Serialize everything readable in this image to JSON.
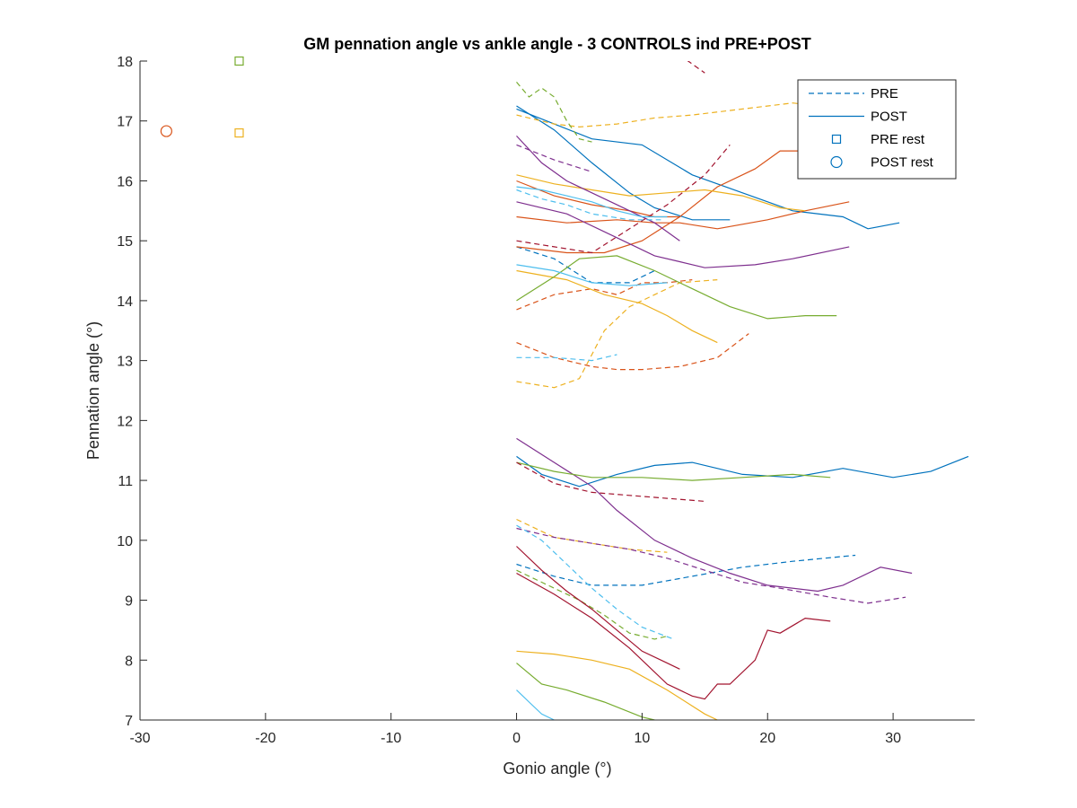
{
  "chart_data": {
    "type": "line",
    "title": "GM pennation angle vs ankle angle - 3 CONTROLS ind PRE+POST",
    "xlabel": "Gonio angle (°)",
    "ylabel": "Pennation angle (°)",
    "xlim": [
      -30,
      36.5
    ],
    "ylim": [
      7,
      18
    ],
    "xticks": [
      -30,
      -20,
      -10,
      0,
      10,
      20,
      30
    ],
    "yticks": [
      7,
      8,
      9,
      10,
      11,
      12,
      13,
      14,
      15,
      16,
      17,
      18
    ],
    "grid": false,
    "legend": {
      "position": "top-right",
      "entries": [
        {
          "label": "PRE",
          "style": "dashed",
          "marker": ""
        },
        {
          "label": "POST",
          "style": "solid",
          "marker": ""
        },
        {
          "label": "PRE rest",
          "style": "none",
          "marker": "square"
        },
        {
          "label": "POST rest",
          "style": "none",
          "marker": "circle"
        }
      ],
      "color": "#0072BD"
    },
    "markers": [
      {
        "x": -27.9,
        "y": 16.83,
        "shape": "circle",
        "color": "#D95319"
      },
      {
        "x": -22.1,
        "y": 18.0,
        "shape": "square",
        "color": "#77AC30"
      },
      {
        "x": -22.1,
        "y": 16.8,
        "shape": "square",
        "color": "#EDB120"
      }
    ],
    "series": [
      {
        "color": "#0072BD",
        "style": "solid",
        "x": [
          0,
          3,
          6,
          10,
          14,
          18,
          22,
          26,
          28,
          30.5
        ],
        "y": [
          17.2,
          16.95,
          16.7,
          16.6,
          16.1,
          15.8,
          15.5,
          15.4,
          15.2,
          15.3
        ]
      },
      {
        "color": "#0072BD",
        "style": "solid",
        "x": [
          0,
          2,
          5,
          8,
          11,
          14,
          18,
          22,
          26,
          30,
          33,
          36
        ],
        "y": [
          11.4,
          11.1,
          10.9,
          11.1,
          11.25,
          11.3,
          11.1,
          11.05,
          11.2,
          11.05,
          11.15,
          11.4
        ]
      },
      {
        "color": "#0072BD",
        "style": "solid",
        "x": [
          0,
          3,
          6,
          9,
          11,
          14,
          17
        ],
        "y": [
          17.25,
          16.85,
          16.3,
          15.8,
          15.55,
          15.35,
          15.35
        ]
      },
      {
        "color": "#0072BD",
        "style": "dashed",
        "x": [
          0,
          3,
          6,
          9,
          11
        ],
        "y": [
          14.9,
          14.7,
          14.3,
          14.3,
          14.5
        ]
      },
      {
        "color": "#0072BD",
        "style": "dashed",
        "x": [
          0,
          3,
          6,
          10,
          14,
          18,
          22,
          27
        ],
        "y": [
          9.6,
          9.4,
          9.25,
          9.25,
          9.4,
          9.55,
          9.65,
          9.75
        ]
      },
      {
        "color": "#D95319",
        "style": "solid",
        "x": [
          0,
          4,
          8,
          11,
          13,
          16,
          20,
          23,
          26.5
        ],
        "y": [
          15.4,
          15.3,
          15.35,
          15.3,
          15.3,
          15.2,
          15.35,
          15.5,
          15.65
        ]
      },
      {
        "color": "#D95319",
        "style": "solid",
        "x": [
          0,
          4,
          7,
          10,
          13,
          16,
          19,
          21,
          23,
          25
        ],
        "y": [
          14.9,
          14.8,
          14.8,
          15.0,
          15.4,
          15.9,
          16.2,
          16.5,
          16.5,
          16.6
        ]
      },
      {
        "color": "#D95319",
        "style": "solid",
        "x": [
          0,
          3,
          6,
          9,
          11,
          13
        ],
        "y": [
          16.0,
          15.75,
          15.6,
          15.5,
          15.4,
          15.4
        ]
      },
      {
        "color": "#D95319",
        "style": "dashed",
        "x": [
          0,
          3,
          6,
          8,
          10,
          12,
          14
        ],
        "y": [
          13.85,
          14.1,
          14.2,
          14.1,
          14.3,
          14.3,
          14.35
        ]
      },
      {
        "color": "#D95319",
        "style": "dashed",
        "x": [
          0,
          3,
          6,
          8,
          10,
          13,
          16,
          18.5
        ],
        "y": [
          13.3,
          13.05,
          12.9,
          12.85,
          12.85,
          12.9,
          13.05,
          13.45
        ]
      },
      {
        "color": "#EDB120",
        "style": "dashed",
        "x": [
          0,
          3,
          5,
          8,
          11,
          14,
          18,
          22,
          26
        ],
        "y": [
          17.1,
          16.95,
          16.9,
          16.95,
          17.05,
          17.1,
          17.2,
          17.3,
          17.2
        ]
      },
      {
        "color": "#EDB120",
        "style": "dashed",
        "x": [
          0,
          3,
          5,
          7,
          9,
          11,
          13,
          16
        ],
        "y": [
          12.65,
          12.55,
          12.7,
          13.5,
          13.9,
          14.1,
          14.3,
          14.35
        ]
      },
      {
        "color": "#EDB120",
        "style": "dashed",
        "x": [
          0,
          3,
          6,
          9,
          12
        ],
        "y": [
          10.35,
          10.05,
          9.95,
          9.85,
          9.8
        ]
      },
      {
        "color": "#EDB120",
        "style": "solid",
        "x": [
          0,
          4,
          7,
          10,
          12,
          14,
          16
        ],
        "y": [
          14.5,
          14.35,
          14.1,
          13.95,
          13.75,
          13.5,
          13.3
        ]
      },
      {
        "color": "#EDB120",
        "style": "solid",
        "x": [
          0,
          3,
          6,
          9,
          12,
          15,
          18,
          21,
          23
        ],
        "y": [
          16.1,
          15.95,
          15.85,
          15.75,
          15.8,
          15.85,
          15.75,
          15.55,
          15.5
        ]
      },
      {
        "color": "#EDB120",
        "style": "solid",
        "x": [
          0,
          3,
          6,
          9,
          12,
          15,
          16
        ],
        "y": [
          8.15,
          8.1,
          8.0,
          7.85,
          7.5,
          7.1,
          7.0
        ]
      },
      {
        "color": "#7E2F8E",
        "style": "solid",
        "x": [
          0,
          4,
          8,
          11,
          13,
          15,
          19,
          22,
          26.5
        ],
        "y": [
          15.65,
          15.45,
          15.05,
          14.75,
          14.65,
          14.55,
          14.6,
          14.7,
          14.9
        ]
      },
      {
        "color": "#7E2F8E",
        "style": "solid",
        "x": [
          0,
          2,
          4,
          8,
          11,
          13
        ],
        "y": [
          16.75,
          16.3,
          16.0,
          15.6,
          15.3,
          15.0
        ]
      },
      {
        "color": "#7E2F8E",
        "style": "solid",
        "x": [
          0,
          3,
          6,
          8,
          11,
          14,
          17,
          20,
          24,
          26,
          29,
          31.5
        ],
        "y": [
          11.7,
          11.3,
          10.9,
          10.5,
          10.0,
          9.7,
          9.45,
          9.25,
          9.15,
          9.25,
          9.55,
          9.45
        ]
      },
      {
        "color": "#7E2F8E",
        "style": "dashed",
        "x": [
          0,
          3,
          6,
          9,
          12,
          15,
          18,
          21,
          25,
          28,
          31
        ],
        "y": [
          10.2,
          10.05,
          9.95,
          9.85,
          9.7,
          9.5,
          9.3,
          9.2,
          9.05,
          8.95,
          9.05
        ]
      },
      {
        "color": "#7E2F8E",
        "style": "dashed",
        "x": [
          0,
          3,
          6
        ],
        "y": [
          16.6,
          16.35,
          16.15
        ]
      },
      {
        "color": "#77AC30",
        "style": "solid",
        "x": [
          0,
          3,
          5,
          8,
          11,
          14,
          17,
          20,
          23,
          25.5
        ],
        "y": [
          14.0,
          14.4,
          14.7,
          14.75,
          14.5,
          14.2,
          13.9,
          13.7,
          13.75,
          13.75
        ]
      },
      {
        "color": "#77AC30",
        "style": "solid",
        "x": [
          0,
          3,
          6,
          10,
          14,
          18,
          22,
          25
        ],
        "y": [
          11.3,
          11.15,
          11.05,
          11.05,
          11.0,
          11.05,
          11.1,
          11.05
        ]
      },
      {
        "color": "#77AC30",
        "style": "solid",
        "x": [
          0,
          2,
          4,
          7,
          10,
          11
        ],
        "y": [
          7.95,
          7.6,
          7.5,
          7.3,
          7.05,
          7.0
        ]
      },
      {
        "color": "#77AC30",
        "style": "dashed",
        "x": [
          0,
          1,
          2,
          3,
          4,
          5,
          6
        ],
        "y": [
          17.65,
          17.4,
          17.55,
          17.4,
          17.0,
          16.7,
          16.65
        ]
      },
      {
        "color": "#77AC30",
        "style": "dashed",
        "x": [
          0,
          2,
          5,
          7,
          9,
          11,
          12
        ],
        "y": [
          9.5,
          9.3,
          9.0,
          8.75,
          8.45,
          8.35,
          8.4
        ]
      },
      {
        "color": "#A2142F",
        "style": "solid",
        "x": [
          0,
          2,
          4,
          6,
          8,
          10,
          12,
          13
        ],
        "y": [
          9.9,
          9.5,
          9.15,
          8.85,
          8.5,
          8.15,
          7.95,
          7.85
        ]
      },
      {
        "color": "#A2142F",
        "style": "solid",
        "x": [
          0,
          3,
          6,
          9,
          12,
          14,
          15,
          16,
          17,
          19,
          20,
          21,
          23,
          25
        ],
        "y": [
          9.45,
          9.1,
          8.7,
          8.2,
          7.6,
          7.4,
          7.35,
          7.6,
          7.6,
          8.0,
          8.5,
          8.45,
          8.7,
          8.65
        ]
      },
      {
        "color": "#A2142F",
        "style": "dashed",
        "x": [
          0,
          3,
          6,
          9,
          12,
          15,
          17
        ],
        "y": [
          15.0,
          14.9,
          14.8,
          15.2,
          15.6,
          16.1,
          16.6
        ]
      },
      {
        "color": "#A2142F",
        "style": "dashed",
        "x": [
          0,
          3,
          6,
          9,
          12,
          15
        ],
        "y": [
          11.3,
          10.95,
          10.8,
          10.75,
          10.7,
          10.65
        ]
      },
      {
        "color": "#A2142F",
        "style": "dashed",
        "x": [
          13,
          14,
          15
        ],
        "y": [
          18.1,
          17.95,
          17.8
        ]
      },
      {
        "color": "#4DBEEE",
        "style": "solid",
        "x": [
          0,
          2,
          4,
          6,
          8,
          10,
          12
        ],
        "y": [
          15.9,
          15.85,
          15.75,
          15.65,
          15.5,
          15.4,
          15.4
        ]
      },
      {
        "color": "#4DBEEE",
        "style": "solid",
        "x": [
          0,
          3,
          6,
          9,
          12
        ],
        "y": [
          14.6,
          14.5,
          14.3,
          14.25,
          14.3
        ]
      },
      {
        "color": "#4DBEEE",
        "style": "solid",
        "x": [
          0,
          1,
          2,
          3
        ],
        "y": [
          7.5,
          7.3,
          7.1,
          7.0
        ]
      },
      {
        "color": "#4DBEEE",
        "style": "dashed",
        "x": [
          0,
          2,
          4,
          6,
          9,
          11.5
        ],
        "y": [
          15.85,
          15.7,
          15.6,
          15.45,
          15.35,
          15.35
        ]
      },
      {
        "color": "#4DBEEE",
        "style": "dashed",
        "x": [
          0,
          3,
          6,
          8
        ],
        "y": [
          13.05,
          13.05,
          13.0,
          13.1
        ]
      },
      {
        "color": "#4DBEEE",
        "style": "dashed",
        "x": [
          0,
          2,
          4,
          6,
          8,
          10,
          12.5
        ],
        "y": [
          10.25,
          10.0,
          9.6,
          9.2,
          8.85,
          8.55,
          8.35
        ]
      }
    ]
  }
}
